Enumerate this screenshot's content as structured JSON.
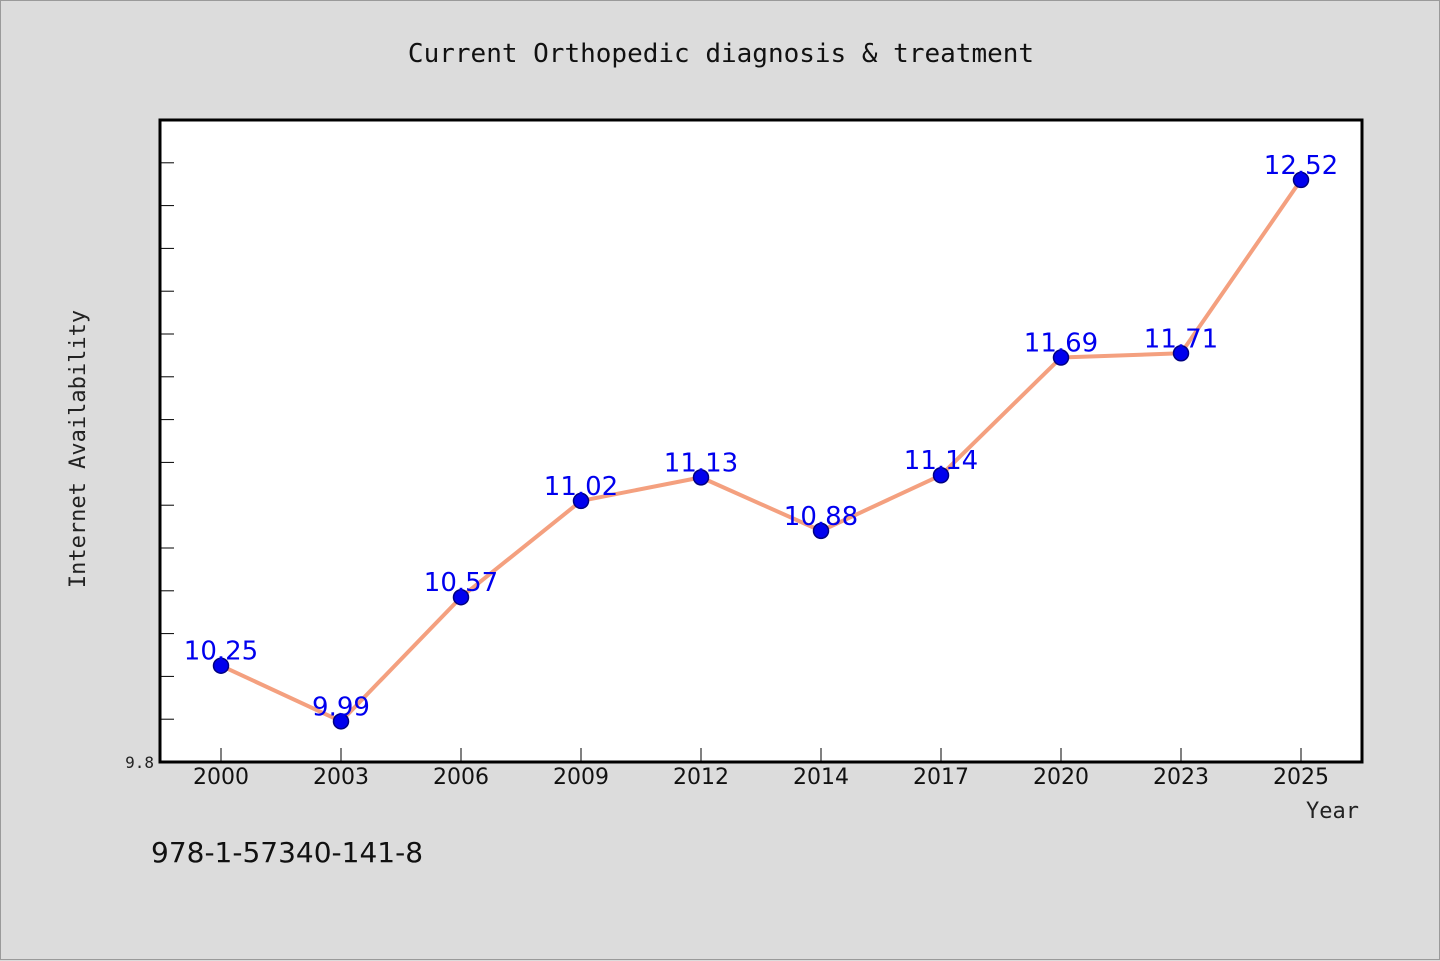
{
  "footnote": "978-1-57340-141-8",
  "chart_data": {
    "type": "line",
    "title": "Current Orthopedic diagnosis & treatment",
    "xlabel": "Year",
    "ylabel": "Internet Availability",
    "categories": [
      "2000",
      "2003",
      "2006",
      "2009",
      "2012",
      "2014",
      "2017",
      "2020",
      "2023",
      "2025"
    ],
    "series": [
      {
        "values": [
          10.25,
          9.99,
          10.57,
          11.02,
          11.13,
          10.88,
          11.14,
          11.69,
          11.71,
          12.52
        ],
        "labels": [
          "10.25",
          "9.99",
          "10.57",
          "11.02",
          "11.13",
          "10.88",
          "11.14",
          "11.69",
          "11.71",
          "12.52"
        ]
      }
    ],
    "ylim": [
      9.8,
      12.8
    ],
    "yticks_labeled": [
      "9.8"
    ],
    "y_minor_tick_step": 0.2,
    "grid": false,
    "colors": {
      "line": "#f4a07f",
      "marker": "#0000ee",
      "marker_edge": "#000080",
      "data_label": "#0000ee",
      "plot_background": "#ffffff",
      "figure_background": "#dcdcdc"
    }
  }
}
